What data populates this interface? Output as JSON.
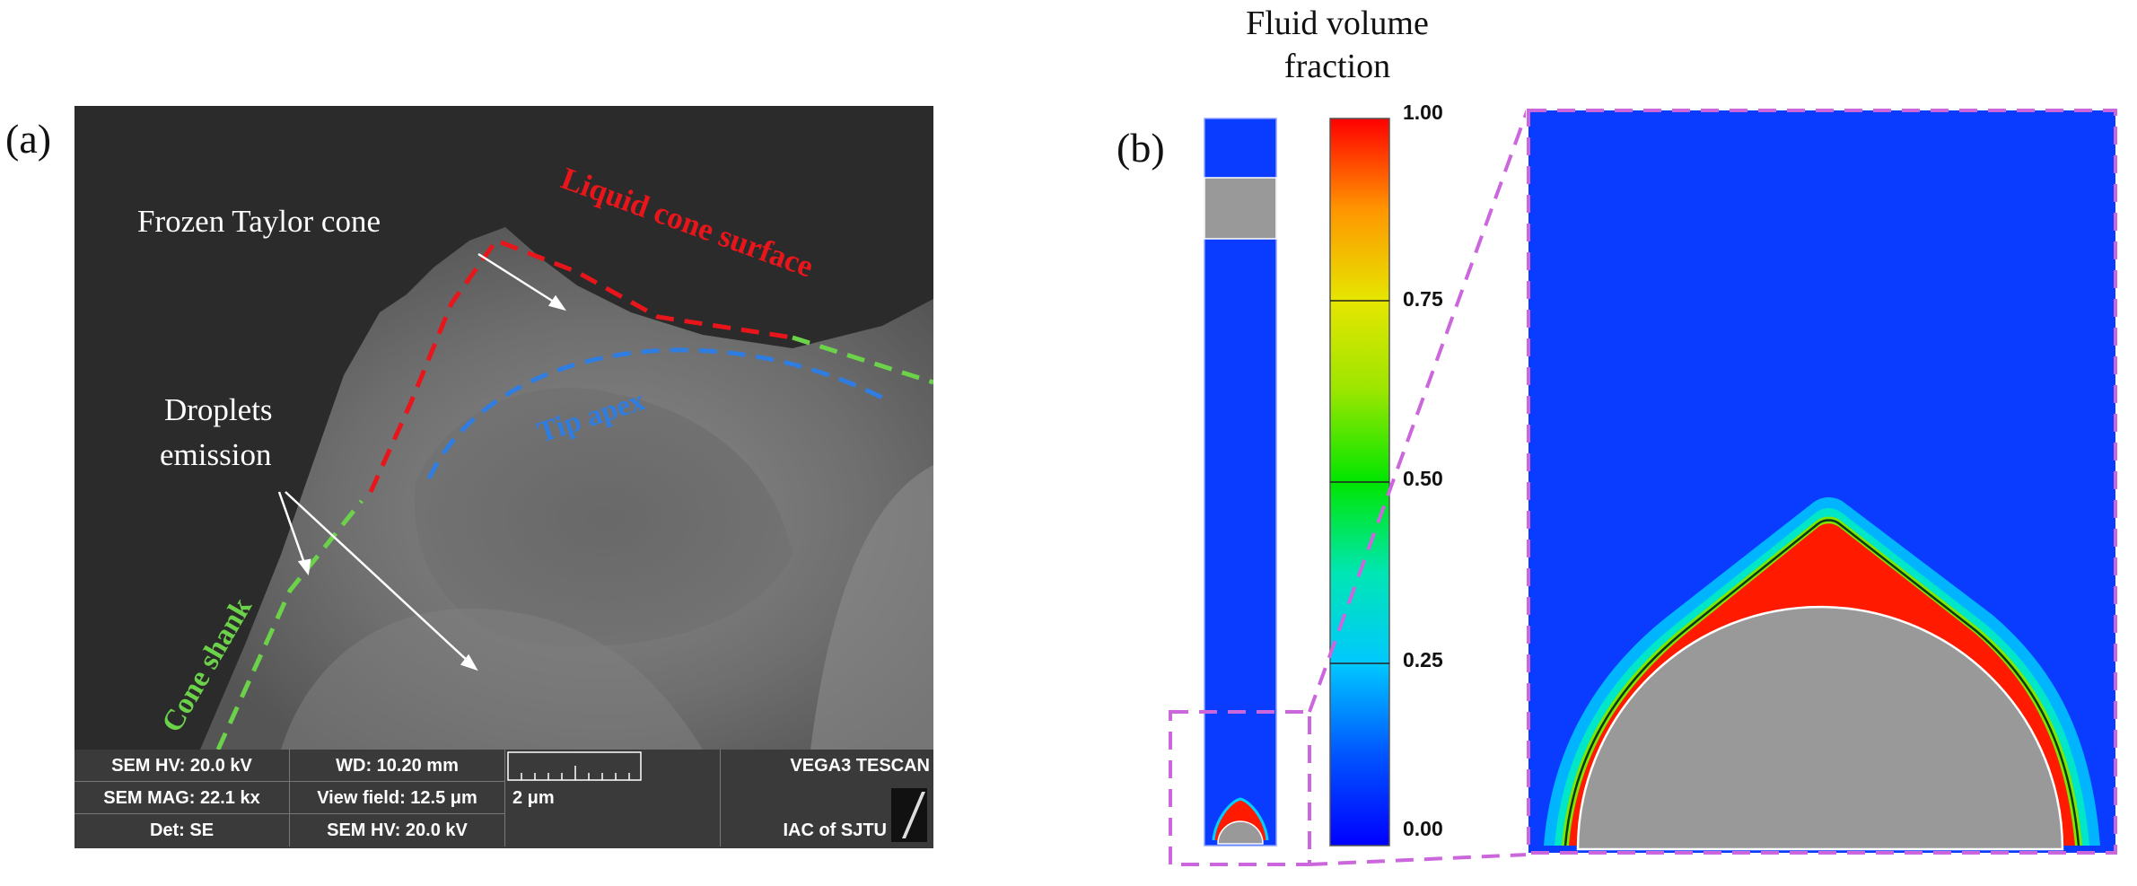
{
  "panel_a": {
    "label": "(a)",
    "annotations": {
      "frozen_cone": "Frozen Taylor cone",
      "droplets_line1": "Droplets",
      "droplets_line2": "emission",
      "liquid_surface": "Liquid cone surface",
      "tip_apex": "Tip apex",
      "cone_shank": "Cone shank"
    },
    "colors": {
      "liquid_surface": "#e8161b",
      "tip_apex": "#2f7de1",
      "cone_shank": "#6cd24a"
    },
    "info_bar": {
      "row1": [
        "SEM HV: 20.0 kV",
        "WD: 10.20 mm",
        "",
        "VEGA3 TESCAN"
      ],
      "row2": [
        "SEM MAG: 22.1 kx",
        "View field: 12.5 μm",
        "2 μm",
        ""
      ],
      "row3": [
        "Det: SE",
        "SEM HV: 20.0 kV",
        "",
        "IAC of SJTU"
      ]
    }
  },
  "panel_b": {
    "label": "(b)",
    "colorbar": {
      "title_line1": "Fluid volume",
      "title_line2": "fraction",
      "ticks": [
        "1.00",
        "0.75",
        "0.50",
        "0.25",
        "0.00"
      ],
      "range": [
        0,
        1
      ]
    },
    "colors": {
      "background": "#0a3cff",
      "solid": "#999999",
      "zoom_box": "#cc66dd"
    }
  }
}
